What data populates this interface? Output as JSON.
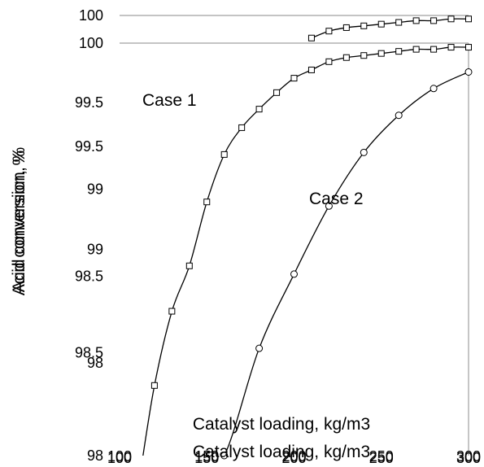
{
  "chart_data": {
    "type": "line",
    "title": "",
    "xlabel": "Catalyst loading, kg/m3",
    "ylabel": "Acid conversion, %",
    "xlim": [
      100,
      300
    ],
    "ylim": [
      98,
      100
    ],
    "x_ticks": [
      "100",
      "150",
      "200",
      "250",
      "300"
    ],
    "y_ticks": [
      "98",
      "98.5",
      "99",
      "99.5",
      "100"
    ],
    "grid": false,
    "legend": "none",
    "annotations": [
      "Case 1",
      "Case 2"
    ],
    "series": [
      {
        "marker": "square",
        "color": "#000000",
        "x": [
          120,
          130,
          140,
          150,
          160,
          170,
          180,
          190,
          200,
          210,
          220,
          230,
          240,
          250,
          260,
          270,
          280,
          290,
          300
        ],
        "y": [
          98.34,
          98.7,
          98.92,
          99.23,
          99.46,
          99.59,
          99.68,
          99.76,
          99.83,
          99.87,
          99.91,
          99.93,
          99.94,
          99.95,
          99.96,
          99.97,
          99.97,
          99.98,
          99.98
        ]
      },
      {
        "marker": "circle",
        "color": "#000000",
        "x": [
          160,
          180,
          200,
          220,
          240,
          260,
          280,
          300
        ],
        "y": [
          98.0,
          98.52,
          98.88,
          99.21,
          99.47,
          99.65,
          99.78,
          99.86
        ]
      }
    ]
  }
}
